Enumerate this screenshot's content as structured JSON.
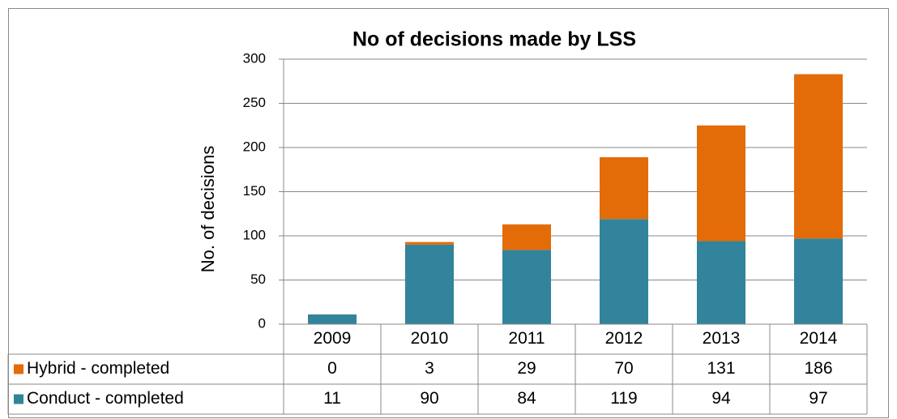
{
  "chart_data": {
    "type": "bar",
    "stacked": true,
    "title": "No of decisions made by LSS",
    "y_label": "No. of decisions",
    "categories": [
      "2009",
      "2010",
      "2011",
      "2012",
      "2013",
      "2014"
    ],
    "series": [
      {
        "name": "Hybrid - completed",
        "color": "#e36c09",
        "values": [
          0,
          3,
          29,
          70,
          131,
          186
        ]
      },
      {
        "name": "Conduct - completed",
        "color": "#31849b",
        "values": [
          11,
          90,
          84,
          119,
          94,
          97
        ]
      }
    ],
    "ylim": [
      0,
      300
    ],
    "yticks": [
      0,
      50,
      100,
      150,
      200,
      250,
      300
    ],
    "grid": true
  }
}
